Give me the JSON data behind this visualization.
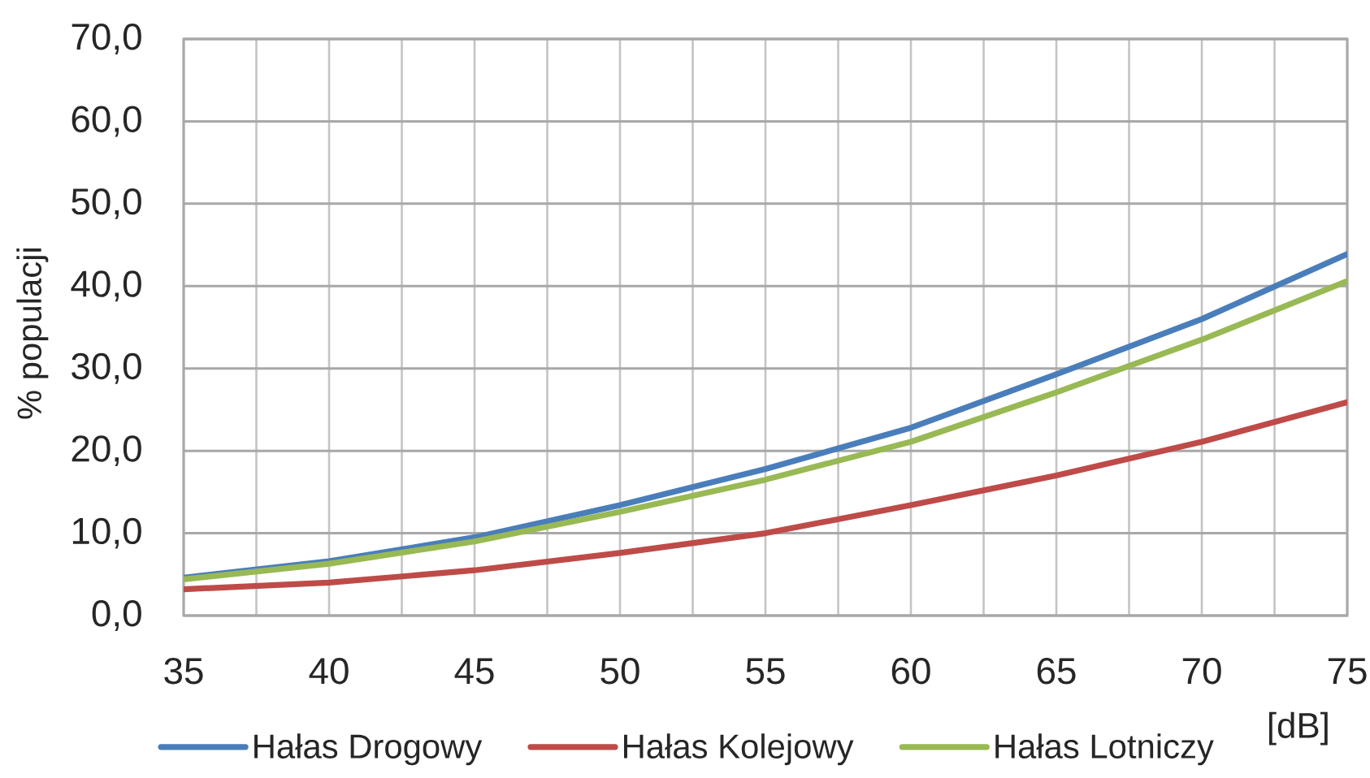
{
  "chart_data": {
    "type": "line",
    "xlabel": "[dB]",
    "ylabel": "% populacji",
    "x": [
      35,
      40,
      45,
      50,
      55,
      60,
      65,
      70,
      75
    ],
    "series": [
      {
        "name": "Hałas Drogowy",
        "color": "#4a7ebb",
        "values": [
          4.6,
          6.6,
          9.5,
          13.4,
          17.8,
          22.8,
          29.3,
          36.0,
          43.9
        ]
      },
      {
        "name": "Hałas Kolejowy",
        "color": "#be4b48",
        "values": [
          3.2,
          4.0,
          5.5,
          7.6,
          10.0,
          13.4,
          17.0,
          21.1,
          25.9
        ]
      },
      {
        "name": "Hałas Lotniczy",
        "color": "#98b954",
        "values": [
          4.4,
          6.3,
          9.0,
          12.6,
          16.5,
          21.1,
          27.1,
          33.5,
          40.6
        ]
      }
    ],
    "xlim": [
      35,
      75
    ],
    "xticks": [
      35,
      {
        "value": 37.5,
        "label": null
      },
      40,
      {
        "value": 42.5,
        "label": null
      },
      45,
      {
        "value": 47.5,
        "label": null
      },
      50,
      {
        "value": 52.5,
        "label": null
      },
      55,
      {
        "value": 57.5,
        "label": null
      },
      60,
      {
        "value": 62.5,
        "label": null
      },
      65,
      {
        "value": 67.5,
        "label": null
      },
      70,
      {
        "value": 72.5,
        "label": null
      },
      75
    ],
    "ylim": [
      0,
      70
    ],
    "yticks": [
      {
        "value": 0,
        "label": "0,0"
      },
      {
        "value": 10,
        "label": "10,0"
      },
      {
        "value": 20,
        "label": "20,0"
      },
      {
        "value": 30,
        "label": "30,0"
      },
      {
        "value": 40,
        "label": "40,0"
      },
      {
        "value": 50,
        "label": "50,0"
      },
      {
        "value": 60,
        "label": "60,0"
      },
      {
        "value": 70,
        "label": "70,0"
      }
    ],
    "grid": true,
    "legend": "bottom"
  }
}
